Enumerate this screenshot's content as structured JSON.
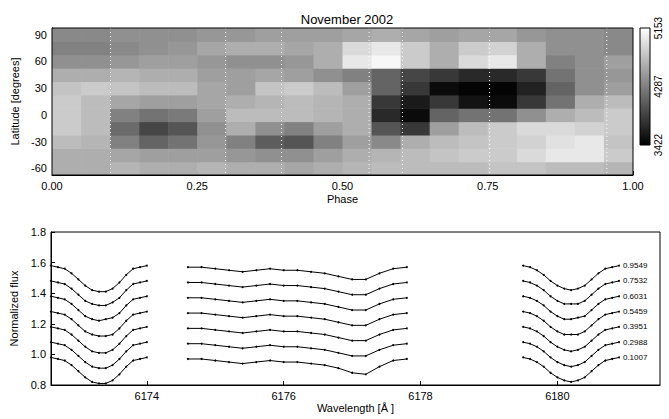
{
  "chart_data": [
    {
      "type": "heatmap",
      "title": "November 2002",
      "xlabel": "Phase",
      "ylabel": "Latitude [degrees]",
      "xlim": [
        0,
        1
      ],
      "xticks": [
        {
          "value": 0,
          "label": "0.00"
        },
        {
          "value": 0.25,
          "label": "0.25"
        },
        {
          "value": 0.5,
          "label": "0.50"
        },
        {
          "value": 0.75,
          "label": "0.75"
        },
        {
          "value": 1,
          "label": "1.00"
        }
      ],
      "ylim": [
        -67.5,
        97.5
      ],
      "yticks": [
        -60,
        -30,
        0,
        30,
        60,
        90
      ],
      "x": [
        0.025,
        0.075,
        0.125,
        0.175,
        0.225,
        0.275,
        0.325,
        0.375,
        0.425,
        0.475,
        0.525,
        0.575,
        0.625,
        0.675,
        0.725,
        0.775,
        0.825,
        0.875,
        0.925,
        0.975
      ],
      "y": [
        -60,
        -45,
        -30,
        -15,
        0,
        15,
        30,
        45,
        60,
        75,
        90
      ],
      "temperature": [
        [
          4600,
          4600,
          4650,
          4600,
          4600,
          4650,
          4600,
          4600,
          4550,
          4600,
          4650,
          4700,
          4700,
          4700,
          4700,
          4750,
          4750,
          4700,
          4700,
          4650
        ],
        [
          4600,
          4600,
          4550,
          4500,
          4500,
          4500,
          4450,
          4400,
          4400,
          4500,
          4600,
          4650,
          4700,
          4750,
          4800,
          4800,
          4900,
          5000,
          5000,
          4800
        ],
        [
          4700,
          4650,
          4300,
          4100,
          4200,
          4450,
          4300,
          4050,
          4000,
          4300,
          4500,
          4350,
          4600,
          4700,
          4750,
          4800,
          4850,
          4950,
          5000,
          4750
        ],
        [
          4800,
          4700,
          4150,
          3900,
          4000,
          4400,
          4600,
          4400,
          4300,
          4500,
          4600,
          4000,
          3800,
          4500,
          4700,
          4800,
          4900,
          4900,
          4850,
          4800
        ],
        [
          4800,
          4700,
          4300,
          4200,
          4250,
          4500,
          4700,
          4700,
          4700,
          4650,
          4600,
          3700,
          3500,
          4100,
          4200,
          4200,
          4400,
          4600,
          4700,
          4800
        ],
        [
          4800,
          4700,
          4550,
          4500,
          4500,
          4550,
          4600,
          4650,
          4700,
          4650,
          4600,
          3800,
          3600,
          3800,
          3550,
          3500,
          3800,
          4200,
          4600,
          4700
        ],
        [
          4750,
          4800,
          4750,
          4700,
          4700,
          4550,
          4500,
          4750,
          4800,
          4700,
          4500,
          4100,
          3800,
          3500,
          3450,
          3450,
          3650,
          4100,
          4400,
          4500
        ],
        [
          4600,
          4600,
          4650,
          4600,
          4600,
          4500,
          4500,
          4550,
          4500,
          4400,
          4300,
          4100,
          3900,
          3800,
          3700,
          3700,
          3800,
          4200,
          4400,
          4450
        ],
        [
          4400,
          4400,
          4450,
          4500,
          4500,
          4450,
          4400,
          4400,
          4450,
          4600,
          5000,
          5100,
          4800,
          4600,
          4900,
          5000,
          4600,
          4300,
          4400,
          4500
        ],
        [
          4300,
          4300,
          4350,
          4400,
          4450,
          4550,
          4600,
          4600,
          4550,
          4600,
          4900,
          5000,
          4800,
          4600,
          4800,
          4850,
          4600,
          4400,
          4400,
          4350
        ],
        [
          4350,
          4350,
          4400,
          4400,
          4400,
          4450,
          4450,
          4500,
          4500,
          4500,
          4550,
          4600,
          4550,
          4500,
          4550,
          4550,
          4450,
          4400,
          4400,
          4350
        ]
      ],
      "colorbar": {
        "range": [
          3422,
          5153
        ],
        "ticks": [
          3422,
          4287,
          5153
        ]
      },
      "phase_lines": [
        0.1007,
        0.2988,
        0.3951,
        0.5459,
        0.6031,
        0.7532,
        0.9549
      ],
      "line_style": "dotted"
    },
    {
      "type": "line",
      "xlabel": "Wavelength [Å ]",
      "ylabel": "Normalized flux",
      "xlim": [
        6172.6,
        6181.5
      ],
      "xticks": [
        6174,
        6176,
        6178,
        6180
      ],
      "ylim": [
        0.8,
        1.8
      ],
      "yticks": [
        0.8,
        {
          "value": 1,
          "label": "1.0"
        },
        1.2,
        1.4,
        1.6,
        1.8
      ],
      "marker": "circle",
      "line_style": "solid",
      "color": "#000000",
      "x": [
        6172.6,
        6172.7,
        6172.8,
        6172.9,
        6173.0,
        6173.1,
        6173.2,
        6173.3,
        6173.4,
        6173.5,
        6173.6,
        6173.7,
        6173.8,
        6173.9,
        6174.0,
        6174.3,
        6174.6,
        6174.8,
        6175.0,
        6175.2,
        6175.4,
        6175.6,
        6175.8,
        6176.0,
        6176.2,
        6176.4,
        6176.6,
        6176.8,
        6177.0,
        6177.2,
        6177.4,
        6177.6,
        6177.8,
        6179.0,
        6179.5,
        6179.6,
        6179.7,
        6179.8,
        6179.9,
        6180.0,
        6180.1,
        6180.2,
        6180.3,
        6180.4,
        6180.5,
        6180.6,
        6180.7,
        6180.8,
        6180.9
      ],
      "series": [
        {
          "name": "0.9549",
          "values": [
            1.58,
            1.57,
            1.56,
            1.53,
            1.49,
            1.45,
            1.42,
            1.41,
            1.41,
            1.43,
            1.47,
            1.52,
            1.56,
            1.57,
            1.58,
            null,
            1.57,
            1.57,
            1.56,
            1.55,
            1.54,
            1.55,
            1.56,
            1.55,
            1.55,
            1.54,
            1.53,
            1.51,
            1.49,
            1.49,
            1.53,
            1.56,
            1.57,
            null,
            1.58,
            1.57,
            1.55,
            1.52,
            1.48,
            1.45,
            1.43,
            1.42,
            1.43,
            1.45,
            1.49,
            1.53,
            1.56,
            1.57,
            1.58
          ]
        },
        {
          "name": "0.7532",
          "values": [
            1.48,
            1.47,
            1.46,
            1.43,
            1.39,
            1.35,
            1.33,
            1.32,
            1.32,
            1.34,
            1.37,
            1.42,
            1.46,
            1.47,
            1.48,
            null,
            1.47,
            1.47,
            1.46,
            1.45,
            1.44,
            1.45,
            1.46,
            1.45,
            1.45,
            1.44,
            1.43,
            1.41,
            1.39,
            1.39,
            1.43,
            1.46,
            1.47,
            null,
            1.48,
            1.47,
            1.45,
            1.42,
            1.38,
            1.35,
            1.33,
            1.33,
            1.33,
            1.35,
            1.39,
            1.43,
            1.46,
            1.47,
            1.48
          ]
        },
        {
          "name": "0.6031",
          "values": [
            1.38,
            1.37,
            1.36,
            1.33,
            1.29,
            1.25,
            1.23,
            1.22,
            1.23,
            1.24,
            1.27,
            1.32,
            1.36,
            1.37,
            1.38,
            null,
            1.37,
            1.37,
            1.36,
            1.35,
            1.34,
            1.35,
            1.36,
            1.35,
            1.35,
            1.34,
            1.33,
            1.31,
            1.29,
            1.29,
            1.33,
            1.36,
            1.37,
            null,
            1.38,
            1.37,
            1.35,
            1.32,
            1.28,
            1.25,
            1.23,
            1.23,
            1.24,
            1.25,
            1.29,
            1.33,
            1.36,
            1.37,
            1.38
          ]
        },
        {
          "name": "0.5459",
          "values": [
            1.28,
            1.27,
            1.26,
            1.23,
            1.19,
            1.15,
            1.13,
            1.12,
            1.12,
            1.13,
            1.17,
            1.22,
            1.26,
            1.27,
            1.28,
            null,
            1.27,
            1.27,
            1.26,
            1.25,
            1.24,
            1.25,
            1.26,
            1.25,
            1.25,
            1.24,
            1.23,
            1.21,
            1.19,
            1.19,
            1.23,
            1.26,
            1.27,
            null,
            1.28,
            1.27,
            1.25,
            1.22,
            1.18,
            1.15,
            1.13,
            1.13,
            1.13,
            1.15,
            1.19,
            1.23,
            1.26,
            1.27,
            1.28
          ]
        },
        {
          "name": "0.3951",
          "values": [
            1.18,
            1.17,
            1.16,
            1.13,
            1.09,
            1.05,
            1.02,
            1.01,
            1.01,
            1.03,
            1.07,
            1.12,
            1.16,
            1.17,
            1.18,
            null,
            1.17,
            1.17,
            1.16,
            1.15,
            1.14,
            1.15,
            1.16,
            1.15,
            1.15,
            1.14,
            1.13,
            1.11,
            1.09,
            1.09,
            1.13,
            1.16,
            1.17,
            null,
            1.18,
            1.17,
            1.15,
            1.12,
            1.08,
            1.05,
            1.03,
            1.02,
            1.03,
            1.05,
            1.09,
            1.13,
            1.16,
            1.17,
            1.18
          ]
        },
        {
          "name": "0.2988",
          "values": [
            1.08,
            1.07,
            1.06,
            1.03,
            0.99,
            0.95,
            0.92,
            0.91,
            0.91,
            0.93,
            0.97,
            1.02,
            1.06,
            1.07,
            1.08,
            null,
            1.07,
            1.07,
            1.06,
            1.05,
            1.04,
            1.05,
            1.06,
            1.05,
            1.05,
            1.04,
            1.03,
            1.01,
            0.99,
            0.99,
            1.03,
            1.06,
            1.07,
            null,
            1.08,
            1.07,
            1.05,
            1.02,
            0.98,
            0.95,
            0.93,
            0.92,
            0.93,
            0.95,
            0.99,
            1.03,
            1.06,
            1.07,
            1.08
          ]
        },
        {
          "name": "0.1007",
          "values": [
            0.98,
            0.97,
            0.96,
            0.93,
            0.89,
            0.85,
            0.82,
            0.81,
            0.81,
            0.83,
            0.87,
            0.92,
            0.96,
            0.97,
            0.98,
            null,
            0.97,
            0.97,
            0.96,
            0.95,
            0.94,
            0.95,
            0.96,
            0.95,
            0.95,
            0.94,
            0.93,
            0.91,
            0.88,
            0.87,
            0.92,
            0.96,
            0.97,
            null,
            0.98,
            0.97,
            0.95,
            0.92,
            0.88,
            0.85,
            0.83,
            0.82,
            0.83,
            0.85,
            0.89,
            0.93,
            0.96,
            0.97,
            0.98
          ]
        }
      ]
    }
  ]
}
